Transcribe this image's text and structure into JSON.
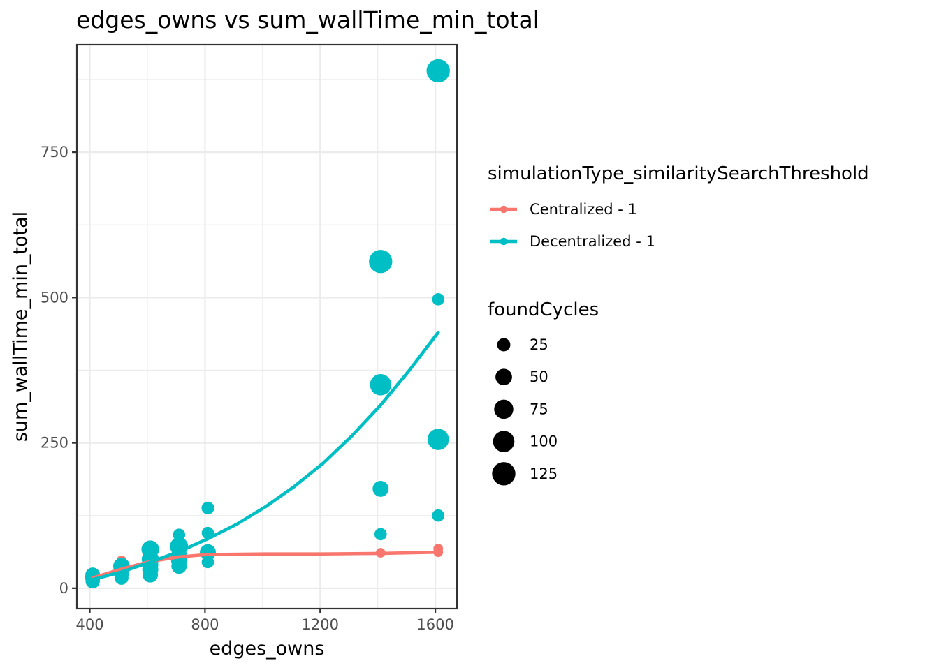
{
  "chart_data": {
    "type": "scatter",
    "title": "edges_owns  vs  sum_wallTime_min_total",
    "xlabel": "edges_owns",
    "ylabel": "sum_wallTime_min_total",
    "xlim": [
      355,
      1675
    ],
    "ylim": [
      -35,
      935
    ],
    "x_ticks": [
      400,
      800,
      1200,
      1600
    ],
    "x_tick_labels": [
      "400",
      "800",
      "1200",
      "1600"
    ],
    "y_ticks": [
      0,
      250,
      500,
      750
    ],
    "y_tick_labels": [
      "0",
      "250",
      "500",
      "750"
    ],
    "grid": true,
    "legend_position": "right",
    "color_legend": {
      "title": "simulationType_similaritySearchThreshold",
      "entries": [
        {
          "label": "Centralized - 1",
          "color": "#F8766D"
        },
        {
          "label": "Decentralized - 1",
          "color": "#00BFC4"
        }
      ]
    },
    "size_legend": {
      "title": "foundCycles",
      "entries": [
        {
          "label": "25",
          "value": 25
        },
        {
          "label": "50",
          "value": 50
        },
        {
          "label": "75",
          "value": 75
        },
        {
          "label": "100",
          "value": 100
        },
        {
          "label": "125",
          "value": 125
        }
      ]
    },
    "series": [
      {
        "name": "Centralized - 1",
        "color": "#F8766D",
        "points": [
          {
            "x": 410,
            "y": 16,
            "size": 8
          },
          {
            "x": 410,
            "y": 22,
            "size": 8
          },
          {
            "x": 510,
            "y": 48,
            "size": 8
          },
          {
            "x": 510,
            "y": 30,
            "size": 8
          },
          {
            "x": 610,
            "y": 58,
            "size": 8
          },
          {
            "x": 610,
            "y": 45,
            "size": 8
          },
          {
            "x": 710,
            "y": 55,
            "size": 8
          },
          {
            "x": 810,
            "y": 60,
            "size": 8
          },
          {
            "x": 1410,
            "y": 61,
            "size": 8
          },
          {
            "x": 1610,
            "y": 68,
            "size": 8
          },
          {
            "x": 1610,
            "y": 62,
            "size": 8
          }
        ],
        "trend": [
          {
            "x": 410,
            "y": 18
          },
          {
            "x": 510,
            "y": 33
          },
          {
            "x": 610,
            "y": 46
          },
          {
            "x": 710,
            "y": 54
          },
          {
            "x": 810,
            "y": 58
          },
          {
            "x": 1010,
            "y": 59
          },
          {
            "x": 1210,
            "y": 59
          },
          {
            "x": 1410,
            "y": 60
          },
          {
            "x": 1610,
            "y": 62
          }
        ]
      },
      {
        "name": "Decentralized - 1",
        "color": "#00BFC4",
        "points": [
          {
            "x": 410,
            "y": 12,
            "size": 32
          },
          {
            "x": 410,
            "y": 18,
            "size": 38
          },
          {
            "x": 410,
            "y": 23,
            "size": 35
          },
          {
            "x": 510,
            "y": 18,
            "size": 30
          },
          {
            "x": 510,
            "y": 25,
            "size": 35
          },
          {
            "x": 510,
            "y": 32,
            "size": 45
          },
          {
            "x": 510,
            "y": 38,
            "size": 50
          },
          {
            "x": 610,
            "y": 23,
            "size": 40
          },
          {
            "x": 610,
            "y": 32,
            "size": 45
          },
          {
            "x": 610,
            "y": 40,
            "size": 45
          },
          {
            "x": 610,
            "y": 50,
            "size": 55
          },
          {
            "x": 610,
            "y": 67,
            "size": 60
          },
          {
            "x": 710,
            "y": 38,
            "size": 40
          },
          {
            "x": 710,
            "y": 48,
            "size": 45
          },
          {
            "x": 710,
            "y": 55,
            "size": 50
          },
          {
            "x": 710,
            "y": 72,
            "size": 65
          },
          {
            "x": 710,
            "y": 92,
            "size": 20
          },
          {
            "x": 810,
            "y": 45,
            "size": 20
          },
          {
            "x": 810,
            "y": 62,
            "size": 45
          },
          {
            "x": 810,
            "y": 95,
            "size": 20
          },
          {
            "x": 810,
            "y": 138,
            "size": 22
          },
          {
            "x": 1410,
            "y": 93,
            "size": 20
          },
          {
            "x": 1410,
            "y": 171,
            "size": 45
          },
          {
            "x": 1410,
            "y": 350,
            "size": 100
          },
          {
            "x": 1410,
            "y": 562,
            "size": 125
          },
          {
            "x": 1610,
            "y": 125,
            "size": 20
          },
          {
            "x": 1610,
            "y": 256,
            "size": 100
          },
          {
            "x": 1610,
            "y": 497,
            "size": 20
          },
          {
            "x": 1610,
            "y": 890,
            "size": 125
          }
        ],
        "trend": [
          {
            "x": 410,
            "y": 15
          },
          {
            "x": 510,
            "y": 28
          },
          {
            "x": 610,
            "y": 45
          },
          {
            "x": 710,
            "y": 63
          },
          {
            "x": 810,
            "y": 85
          },
          {
            "x": 910,
            "y": 110
          },
          {
            "x": 1010,
            "y": 140
          },
          {
            "x": 1110,
            "y": 175
          },
          {
            "x": 1210,
            "y": 215
          },
          {
            "x": 1310,
            "y": 262
          },
          {
            "x": 1410,
            "y": 315
          },
          {
            "x": 1510,
            "y": 375
          },
          {
            "x": 1610,
            "y": 440
          }
        ]
      }
    ]
  }
}
